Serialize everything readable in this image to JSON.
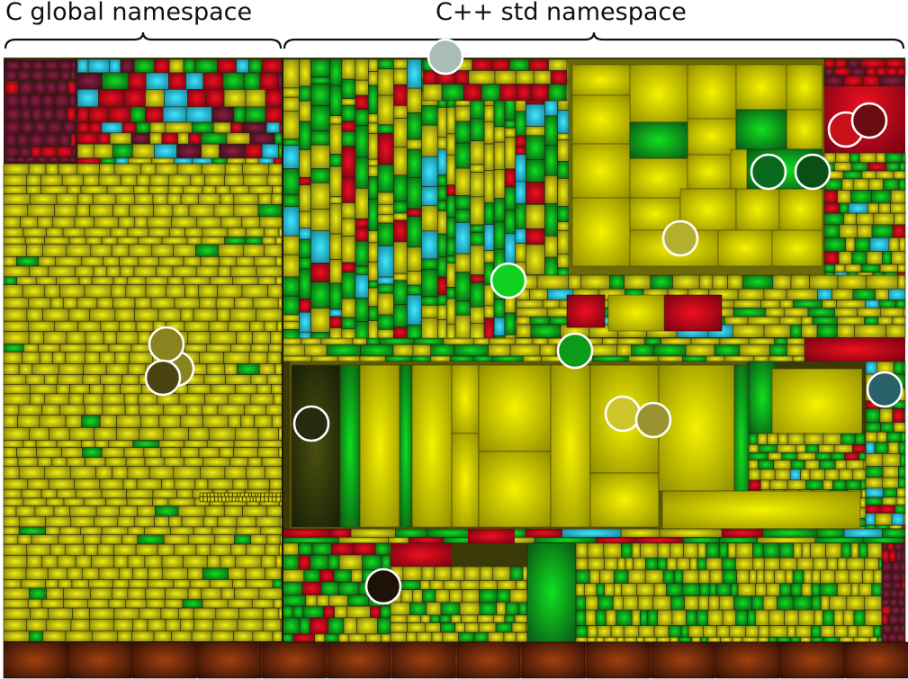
{
  "labels": {
    "c_global": "C global namespace",
    "cpp_std": "C++ std namespace"
  },
  "colors": {
    "yellow": "#d4d000",
    "green": "#10b020",
    "red": "#c00010",
    "cyan": "#20b8d0",
    "maroon": "#6a1030",
    "brown": "#6a2808",
    "olive_dark": "#2a2a10"
  },
  "markers": [
    {
      "id": "marker-std-top",
      "color": "#a9bcb6"
    },
    {
      "id": "marker-red-1",
      "color": "#c81018"
    },
    {
      "id": "marker-red-2",
      "color": "#6a0c10"
    },
    {
      "id": "marker-green-1",
      "color": "#0a6a1c"
    },
    {
      "id": "marker-green-2",
      "color": "#0a5014"
    },
    {
      "id": "marker-olive-1",
      "color": "#b6b030"
    },
    {
      "id": "marker-bright-green",
      "color": "#10d020"
    },
    {
      "id": "marker-green-3",
      "color": "#0c9a18"
    },
    {
      "id": "marker-olive-2",
      "color": "#8a8420"
    },
    {
      "id": "marker-olive-3",
      "color": "#8a8420"
    },
    {
      "id": "marker-olive-4",
      "color": "#4a4410"
    },
    {
      "id": "marker-teal",
      "color": "#2a6068"
    },
    {
      "id": "marker-dark-olive",
      "color": "#262a10"
    },
    {
      "id": "marker-yellow-1",
      "color": "#ccc62a"
    },
    {
      "id": "marker-olive-5",
      "color": "#9a9430"
    },
    {
      "id": "marker-dark-brown",
      "color": "#1e1208"
    }
  ]
}
